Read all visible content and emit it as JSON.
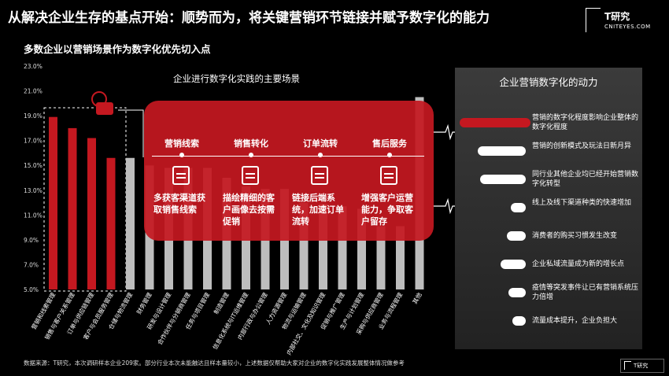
{
  "title": "从解决企业生存的基点开始：顺势而为，将关键营销环节链接并赋予数字化的能力",
  "subtitle": "多数企业以营销场景作为数字化优先切入点",
  "brand": {
    "name": "T研究",
    "url": "CNITEYES.COM",
    "footer_name": "T研究"
  },
  "footnote": "数据来源：T研究，本次调研样本企业209家。部分行业本次未能触达且样本量较小，上述数据仅帮助大家对企业的数字化实践发展整体情况做参考",
  "colors": {
    "accent": "#c41820",
    "bar_gray": "#bdbdbd"
  },
  "chart_data": {
    "type": "bar",
    "title": "企业进行数字化实践的主要场景",
    "ylim": [
      5,
      23
    ],
    "ytick_labels": [
      "5.0%",
      "7.0%",
      "9.0%",
      "11.0%",
      "13.0%",
      "15.0%",
      "17.0%",
      "19.0%",
      "21.0%",
      "23.0%"
    ],
    "categories": [
      "营销和线索管理",
      "销售与客户关系管理",
      "订单与供应链管理",
      "客户与会员服务管理",
      "仓储与物流管理",
      "财务管理",
      "研发与设计管理",
      "合作伙伴与分销商管理",
      "任务与项目管理",
      "制造管理",
      "信息化系统与IT运维管理",
      "内部行政与办公管理",
      "人力资源管理",
      "物流与运输管理",
      "内部社交、文化及知识管理",
      "促销与推广管理",
      "生产与计划管理",
      "采购与供应商管理",
      "业务与流程管理",
      "其他"
    ],
    "values": [
      18.9,
      18.0,
      17.2,
      15.6,
      15.6,
      15.0,
      14.8,
      14.8,
      14.8,
      14.0,
      13.3,
      13.1,
      13.1,
      12.0,
      11.9,
      11.7,
      11.5,
      10.1,
      10.1,
      20.5
    ],
    "highlighted": [
      0,
      1,
      2,
      3
    ]
  },
  "scenes": [
    {
      "name": "营销线索",
      "desc": "多获客渠道获取销售线索",
      "icon": "profile-card-icon"
    },
    {
      "name": "销售转化",
      "desc": "描绘精细的客户画像去按需促销",
      "icon": "laptop-icon"
    },
    {
      "name": "订单流转",
      "desc": "链接后端系统，加速订单流转",
      "icon": "wave-icon"
    },
    {
      "name": "售后服务",
      "desc": "增强客户运营能力，争取客户留存",
      "icon": "group-icon"
    }
  ],
  "drivers": {
    "title": "企业营销数字化的动力",
    "items": [
      {
        "label": "营销的数字化程度影响企业整体的数字化程度",
        "value": 1.0
      },
      {
        "label": "营销的创新模式及玩法日新月异",
        "value": 0.85
      },
      {
        "label": "同行业其他企业均已经开始营销数字化转型",
        "value": 0.8
      },
      {
        "label": "线上及线下渠道种类的快速增加",
        "value": 0.27
      },
      {
        "label": "消费者的购买习惯发生改变",
        "value": 0.34
      },
      {
        "label": "企业私域流量成为新的增长点",
        "value": 0.45
      },
      {
        "label": "疫情等突发事件让已有营销系统压力倍增",
        "value": 0.3
      },
      {
        "label": "流量成本提升，企业负担大",
        "value": 0.24
      }
    ]
  }
}
